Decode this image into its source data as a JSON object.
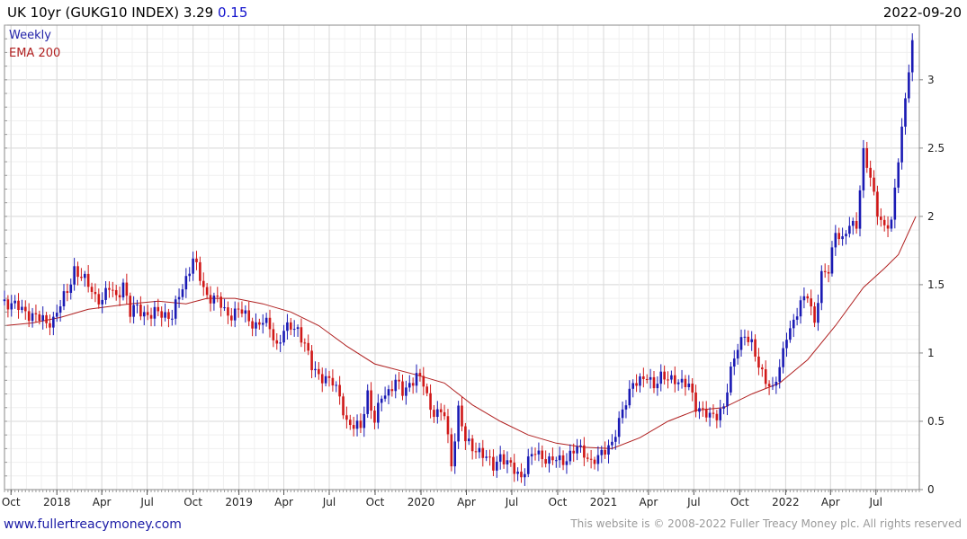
{
  "header": {
    "title": "UK 10yr (GUKG10 INDEX) 3.29",
    "change": "0.15",
    "date": "2022-09-20"
  },
  "legend": {
    "weekly": "Weekly",
    "ema": "EMA 200"
  },
  "footer": {
    "site": "www.fullertreacymoney.com",
    "copyright": "This website is © 2008-2022 Fuller Treacy Money plc. All rights reserved"
  },
  "colors": {
    "up": "#1a1ab4",
    "down": "#d01818",
    "ema": "#b02020",
    "grid": "#d9d9d9",
    "frame": "#888888"
  },
  "chart_data": {
    "type": "line",
    "xlabel": "",
    "ylabel": "",
    "xlim": [
      "2017-09-18",
      "2022-09-26"
    ],
    "ylim": [
      0,
      3.4
    ],
    "y_ticks": [
      0,
      0.5,
      1,
      1.5,
      2,
      2.5,
      3
    ],
    "y_tick_labels": [
      "0",
      "0.5",
      "1",
      "1.5",
      "2",
      "2.5",
      "3"
    ],
    "x_ticks": [
      {
        "date": "2017-10-01",
        "label": "Oct"
      },
      {
        "date": "2018-01-01",
        "label": "2018"
      },
      {
        "date": "2018-04-01",
        "label": "Apr"
      },
      {
        "date": "2018-07-01",
        "label": "Jul"
      },
      {
        "date": "2018-10-01",
        "label": "Oct"
      },
      {
        "date": "2019-01-01",
        "label": "2019"
      },
      {
        "date": "2019-04-01",
        "label": "Apr"
      },
      {
        "date": "2019-07-01",
        "label": "Jul"
      },
      {
        "date": "2019-10-01",
        "label": "Oct"
      },
      {
        "date": "2020-01-01",
        "label": "2020"
      },
      {
        "date": "2020-04-01",
        "label": "Apr"
      },
      {
        "date": "2020-07-01",
        "label": "Jul"
      },
      {
        "date": "2020-10-01",
        "label": "Oct"
      },
      {
        "date": "2021-01-01",
        "label": "2021"
      },
      {
        "date": "2021-04-01",
        "label": "Apr"
      },
      {
        "date": "2021-07-01",
        "label": "Jul"
      },
      {
        "date": "2021-10-01",
        "label": "Oct"
      },
      {
        "date": "2022-01-01",
        "label": "2022"
      },
      {
        "date": "2022-04-01",
        "label": "Apr"
      },
      {
        "date": "2022-07-01",
        "label": "Jul"
      }
    ],
    "grid": true,
    "series": [
      {
        "name": "Weekly",
        "style": "candlestick",
        "points": [
          [
            "2017-09-18",
            1.38
          ],
          [
            "2017-10-02",
            1.36
          ],
          [
            "2017-10-16",
            1.33
          ],
          [
            "2017-10-30",
            1.3
          ],
          [
            "2017-11-13",
            1.28
          ],
          [
            "2017-11-27",
            1.25
          ],
          [
            "2017-12-11",
            1.22
          ],
          [
            "2017-12-25",
            1.25
          ],
          [
            "2018-01-08",
            1.35
          ],
          [
            "2018-01-22",
            1.45
          ],
          [
            "2018-02-05",
            1.62
          ],
          [
            "2018-02-19",
            1.55
          ],
          [
            "2018-03-05",
            1.5
          ],
          [
            "2018-03-19",
            1.42
          ],
          [
            "2018-04-02",
            1.38
          ],
          [
            "2018-04-16",
            1.48
          ],
          [
            "2018-04-30",
            1.42
          ],
          [
            "2018-05-14",
            1.5
          ],
          [
            "2018-05-28",
            1.28
          ],
          [
            "2018-06-11",
            1.36
          ],
          [
            "2018-06-25",
            1.28
          ],
          [
            "2018-07-09",
            1.26
          ],
          [
            "2018-07-23",
            1.32
          ],
          [
            "2018-08-06",
            1.28
          ],
          [
            "2018-08-20",
            1.25
          ],
          [
            "2018-09-03",
            1.43
          ],
          [
            "2018-09-17",
            1.55
          ],
          [
            "2018-10-01",
            1.68
          ],
          [
            "2018-10-15",
            1.55
          ],
          [
            "2018-10-29",
            1.42
          ],
          [
            "2018-11-12",
            1.4
          ],
          [
            "2018-11-26",
            1.35
          ],
          [
            "2018-12-10",
            1.28
          ],
          [
            "2018-12-24",
            1.3
          ],
          [
            "2019-01-07",
            1.3
          ],
          [
            "2019-01-21",
            1.25
          ],
          [
            "2019-02-04",
            1.2
          ],
          [
            "2019-02-18",
            1.22
          ],
          [
            "2019-03-04",
            1.2
          ],
          [
            "2019-03-18",
            1.05
          ],
          [
            "2019-04-01",
            1.15
          ],
          [
            "2019-04-15",
            1.2
          ],
          [
            "2019-04-29",
            1.18
          ],
          [
            "2019-05-13",
            1.05
          ],
          [
            "2019-05-27",
            0.9
          ],
          [
            "2019-06-10",
            0.85
          ],
          [
            "2019-06-24",
            0.8
          ],
          [
            "2019-07-08",
            0.78
          ],
          [
            "2019-07-22",
            0.7
          ],
          [
            "2019-08-05",
            0.48
          ],
          [
            "2019-08-19",
            0.45
          ],
          [
            "2019-09-02",
            0.48
          ],
          [
            "2019-09-16",
            0.7
          ],
          [
            "2019-09-30",
            0.48
          ],
          [
            "2019-10-14",
            0.7
          ],
          [
            "2019-10-28",
            0.72
          ],
          [
            "2019-11-11",
            0.78
          ],
          [
            "2019-11-25",
            0.72
          ],
          [
            "2019-12-09",
            0.78
          ],
          [
            "2019-12-23",
            0.82
          ],
          [
            "2020-01-06",
            0.78
          ],
          [
            "2020-01-20",
            0.6
          ],
          [
            "2020-02-03",
            0.55
          ],
          [
            "2020-02-17",
            0.55
          ],
          [
            "2020-03-02",
            0.2
          ],
          [
            "2020-03-16",
            0.58
          ],
          [
            "2020-03-30",
            0.35
          ],
          [
            "2020-04-13",
            0.32
          ],
          [
            "2020-04-27",
            0.28
          ],
          [
            "2020-05-11",
            0.22
          ],
          [
            "2020-05-25",
            0.18
          ],
          [
            "2020-06-08",
            0.25
          ],
          [
            "2020-06-22",
            0.18
          ],
          [
            "2020-07-06",
            0.15
          ],
          [
            "2020-07-20",
            0.1
          ],
          [
            "2020-08-03",
            0.2
          ],
          [
            "2020-08-17",
            0.28
          ],
          [
            "2020-08-31",
            0.25
          ],
          [
            "2020-09-14",
            0.2
          ],
          [
            "2020-09-28",
            0.22
          ],
          [
            "2020-10-12",
            0.22
          ],
          [
            "2020-10-26",
            0.25
          ],
          [
            "2020-11-09",
            0.3
          ],
          [
            "2020-11-23",
            0.28
          ],
          [
            "2020-12-07",
            0.2
          ],
          [
            "2020-12-21",
            0.22
          ],
          [
            "2021-01-04",
            0.3
          ],
          [
            "2021-01-18",
            0.35
          ],
          [
            "2021-02-01",
            0.48
          ],
          [
            "2021-02-15",
            0.65
          ],
          [
            "2021-03-01",
            0.8
          ],
          [
            "2021-03-15",
            0.78
          ],
          [
            "2021-03-29",
            0.82
          ],
          [
            "2021-04-12",
            0.78
          ],
          [
            "2021-04-26",
            0.82
          ],
          [
            "2021-05-10",
            0.8
          ],
          [
            "2021-05-24",
            0.82
          ],
          [
            "2021-06-07",
            0.78
          ],
          [
            "2021-06-21",
            0.75
          ],
          [
            "2021-07-05",
            0.62
          ],
          [
            "2021-07-19",
            0.58
          ],
          [
            "2021-08-02",
            0.52
          ],
          [
            "2021-08-16",
            0.55
          ],
          [
            "2021-08-30",
            0.62
          ],
          [
            "2021-09-13",
            0.85
          ],
          [
            "2021-09-27",
            1.05
          ],
          [
            "2021-10-11",
            1.15
          ],
          [
            "2021-10-25",
            1.05
          ],
          [
            "2021-11-08",
            0.9
          ],
          [
            "2021-11-22",
            0.82
          ],
          [
            "2021-12-06",
            0.72
          ],
          [
            "2021-12-20",
            0.88
          ],
          [
            "2022-01-03",
            1.15
          ],
          [
            "2022-01-17",
            1.22
          ],
          [
            "2022-01-31",
            1.35
          ],
          [
            "2022-02-14",
            1.45
          ],
          [
            "2022-02-28",
            1.22
          ],
          [
            "2022-03-14",
            1.55
          ],
          [
            "2022-03-28",
            1.62
          ],
          [
            "2022-04-11",
            1.9
          ],
          [
            "2022-04-25",
            1.8
          ],
          [
            "2022-05-09",
            1.95
          ],
          [
            "2022-05-23",
            1.95
          ],
          [
            "2022-06-06",
            2.45
          ],
          [
            "2022-06-20",
            2.28
          ],
          [
            "2022-07-04",
            2.05
          ],
          [
            "2022-07-18",
            1.9
          ],
          [
            "2022-08-01",
            1.95
          ],
          [
            "2022-08-15",
            2.45
          ],
          [
            "2022-08-29",
            2.85
          ],
          [
            "2022-09-12",
            3.29
          ]
        ]
      },
      {
        "name": "EMA 200",
        "style": "line",
        "points": [
          [
            "2017-09-18",
            1.2
          ],
          [
            "2017-11-13",
            1.22
          ],
          [
            "2018-01-08",
            1.26
          ],
          [
            "2018-03-05",
            1.32
          ],
          [
            "2018-05-28",
            1.36
          ],
          [
            "2018-07-23",
            1.38
          ],
          [
            "2018-09-17",
            1.36
          ],
          [
            "2018-10-29",
            1.4
          ],
          [
            "2018-12-24",
            1.4
          ],
          [
            "2019-02-18",
            1.36
          ],
          [
            "2019-04-15",
            1.3
          ],
          [
            "2019-06-10",
            1.2
          ],
          [
            "2019-08-05",
            1.05
          ],
          [
            "2019-09-30",
            0.92
          ],
          [
            "2019-12-23",
            0.84
          ],
          [
            "2020-02-17",
            0.78
          ],
          [
            "2020-04-13",
            0.62
          ],
          [
            "2020-06-08",
            0.5
          ],
          [
            "2020-08-03",
            0.4
          ],
          [
            "2020-09-28",
            0.34
          ],
          [
            "2020-11-23",
            0.31
          ],
          [
            "2021-01-18",
            0.3
          ],
          [
            "2021-03-15",
            0.38
          ],
          [
            "2021-05-10",
            0.5
          ],
          [
            "2021-07-05",
            0.58
          ],
          [
            "2021-08-30",
            0.6
          ],
          [
            "2021-10-25",
            0.7
          ],
          [
            "2021-12-20",
            0.78
          ],
          [
            "2022-02-14",
            0.95
          ],
          [
            "2022-04-11",
            1.2
          ],
          [
            "2022-06-06",
            1.48
          ],
          [
            "2022-07-18",
            1.62
          ],
          [
            "2022-08-15",
            1.72
          ],
          [
            "2022-09-19",
            2.0
          ]
        ]
      }
    ]
  }
}
